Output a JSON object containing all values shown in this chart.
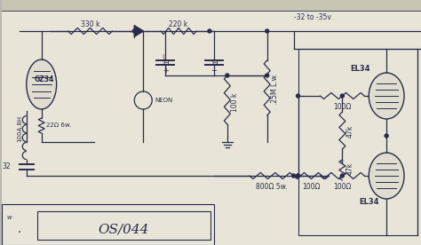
{
  "bg_color": "#b8b8b0",
  "paper_color": "#e8e5d8",
  "paper_color2": "#d8d5c5",
  "line_color": "#2a2a4a",
  "label_os044": "OS/044",
  "label_voltage": "-32 to -35v",
  "label_gz34": "GZ34",
  "label_el34": "EL34",
  "label_330k": "330 k",
  "label_220k": "220 k",
  "label_100k": "100 k",
  "label_25m": ".25M L.w.",
  "label_22ohm": "22Ω 6w.",
  "label_100ohm": "100Ω",
  "label_800ohm": "800Ω 5w.",
  "label_32": "32",
  "label_neon": "NEON",
  "label_100ah": "100A.8H",
  "font_size_main": 7,
  "font_size_small": 5.5,
  "font_size_label": 11
}
